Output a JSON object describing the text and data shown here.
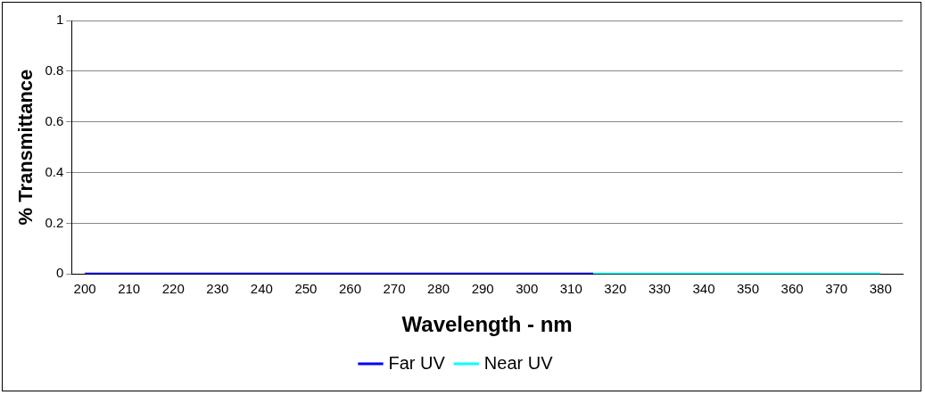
{
  "chart_data": {
    "type": "line",
    "xlabel": "Wavelength - nm",
    "ylabel": "% Transmittance",
    "series": [
      {
        "name": "Far UV",
        "color": "#0000ff",
        "x": [
          200,
          315
        ],
        "values": [
          0,
          0
        ]
      },
      {
        "name": "Near UV",
        "color": "#00ffff",
        "x": [
          315,
          380
        ],
        "values": [
          0,
          0
        ]
      }
    ],
    "xlim": [
      197,
      385
    ],
    "xticks": [
      200,
      210,
      220,
      230,
      240,
      250,
      260,
      270,
      280,
      290,
      300,
      310,
      320,
      330,
      340,
      350,
      360,
      370,
      380
    ],
    "ylim": [
      0,
      1
    ],
    "yticks": [
      0,
      0.2,
      0.4,
      0.6,
      0.8,
      1
    ],
    "grid": "y",
    "legend": "bottom",
    "marker": "none",
    "line_style": "solid"
  }
}
